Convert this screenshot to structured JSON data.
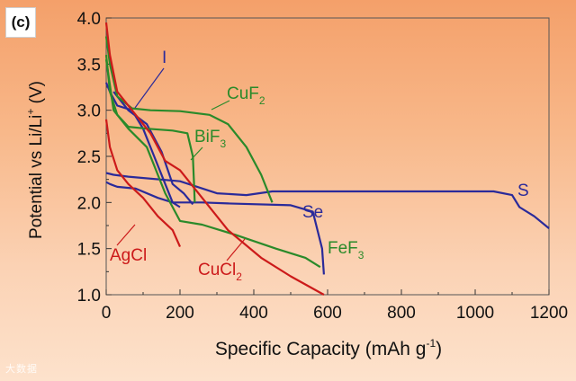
{
  "panel_label": "(c)",
  "watermark": "大数据",
  "chart_data": {
    "type": "line",
    "title": "",
    "xlabel": "Specific Capacity (mAh g",
    "xlabel_sup": "-1",
    "xlabel_end": ")",
    "ylabel_main": "Potential vs Li/Li",
    "ylabel_sup": "+",
    "ylabel_end": " (V)",
    "xlim": [
      0,
      1200
    ],
    "ylim": [
      1.0,
      4.0
    ],
    "xticks": [
      "0",
      "200",
      "400",
      "600",
      "800",
      "1000",
      "1200"
    ],
    "yticks": [
      "1.0",
      "1.5",
      "2.0",
      "2.5",
      "3.0",
      "3.5",
      "4.0"
    ],
    "series": [
      {
        "name": "S",
        "color": "#2a2a9a",
        "label_base": "S",
        "label_sub": "",
        "points": [
          [
            0,
            2.32
          ],
          [
            20,
            2.3
          ],
          [
            60,
            2.28
          ],
          [
            200,
            2.23
          ],
          [
            300,
            2.1
          ],
          [
            380,
            2.08
          ],
          [
            450,
            2.12
          ],
          [
            600,
            2.12
          ],
          [
            900,
            2.12
          ],
          [
            1050,
            2.12
          ],
          [
            1100,
            2.08
          ],
          [
            1120,
            1.95
          ],
          [
            1160,
            1.85
          ],
          [
            1200,
            1.72
          ]
        ]
      },
      {
        "name": "Se",
        "color": "#2a2a9a",
        "label_base": "Se",
        "label_sub": "",
        "points": [
          [
            0,
            2.22
          ],
          [
            10,
            2.2
          ],
          [
            30,
            2.17
          ],
          [
            80,
            2.15
          ],
          [
            140,
            2.05
          ],
          [
            180,
            2.0
          ],
          [
            260,
            2.0
          ],
          [
            330,
            1.99
          ],
          [
            500,
            1.97
          ],
          [
            560,
            1.9
          ],
          [
            585,
            1.5
          ],
          [
            590,
            1.22
          ]
        ]
      },
      {
        "name": "I",
        "color": "#2a2a9a",
        "label_base": "I",
        "label_sub": "",
        "points": [
          [
            0,
            3.3
          ],
          [
            10,
            3.2
          ],
          [
            30,
            3.05
          ],
          [
            70,
            3.0
          ],
          [
            100,
            2.8
          ],
          [
            130,
            2.5
          ],
          [
            160,
            2.2
          ],
          [
            180,
            2.0
          ],
          [
            200,
            1.95
          ]
        ]
      },
      {
        "name": "I-2",
        "color": "#2a2a9a",
        "label_base": "",
        "label_sub": "",
        "points": [
          [
            20,
            3.2
          ],
          [
            60,
            3.0
          ],
          [
            110,
            2.85
          ],
          [
            150,
            2.55
          ],
          [
            180,
            2.2
          ],
          [
            210,
            2.1
          ],
          [
            235,
            1.98
          ]
        ]
      },
      {
        "name": "CuF2",
        "color": "#2a8a2a",
        "label_base": "CuF",
        "label_sub": "2",
        "points": [
          [
            0,
            3.8
          ],
          [
            10,
            3.5
          ],
          [
            30,
            3.15
          ],
          [
            70,
            3.02
          ],
          [
            120,
            3.0
          ],
          [
            200,
            2.99
          ],
          [
            280,
            2.95
          ],
          [
            330,
            2.85
          ],
          [
            380,
            2.6
          ],
          [
            420,
            2.3
          ],
          [
            450,
            2.0
          ]
        ]
      },
      {
        "name": "BiF3",
        "color": "#2a8a2a",
        "label_base": "BiF",
        "label_sub": "3",
        "points": [
          [
            0,
            3.6
          ],
          [
            10,
            3.2
          ],
          [
            30,
            2.95
          ],
          [
            60,
            2.82
          ],
          [
            110,
            2.8
          ],
          [
            180,
            2.78
          ],
          [
            220,
            2.75
          ],
          [
            235,
            2.5
          ],
          [
            238,
            2.2
          ],
          [
            240,
            2.0
          ]
        ]
      },
      {
        "name": "FeF3",
        "color": "#2a8a2a",
        "label_base": "FeF",
        "label_sub": "3",
        "points": [
          [
            0,
            3.55
          ],
          [
            20,
            3.0
          ],
          [
            60,
            2.8
          ],
          [
            110,
            2.6
          ],
          [
            160,
            2.1
          ],
          [
            200,
            1.8
          ],
          [
            260,
            1.76
          ],
          [
            350,
            1.65
          ],
          [
            460,
            1.5
          ],
          [
            540,
            1.4
          ],
          [
            580,
            1.3
          ]
        ]
      },
      {
        "name": "AgCl",
        "color": "#cc1a1a",
        "label_base": "AgCl",
        "label_sub": "",
        "points": [
          [
            0,
            2.9
          ],
          [
            10,
            2.6
          ],
          [
            30,
            2.35
          ],
          [
            60,
            2.2
          ],
          [
            100,
            2.05
          ],
          [
            140,
            1.85
          ],
          [
            180,
            1.7
          ],
          [
            200,
            1.52
          ]
        ]
      },
      {
        "name": "CuCl2",
        "color": "#cc1a1a",
        "label_base": "CuCl",
        "label_sub": "2",
        "points": [
          [
            0,
            3.95
          ],
          [
            10,
            3.6
          ],
          [
            30,
            3.2
          ],
          [
            70,
            3.0
          ],
          [
            120,
            2.75
          ],
          [
            160,
            2.45
          ],
          [
            200,
            2.35
          ],
          [
            260,
            2.05
          ],
          [
            330,
            1.7
          ],
          [
            420,
            1.4
          ],
          [
            500,
            1.2
          ],
          [
            590,
            1.0
          ]
        ]
      }
    ]
  }
}
